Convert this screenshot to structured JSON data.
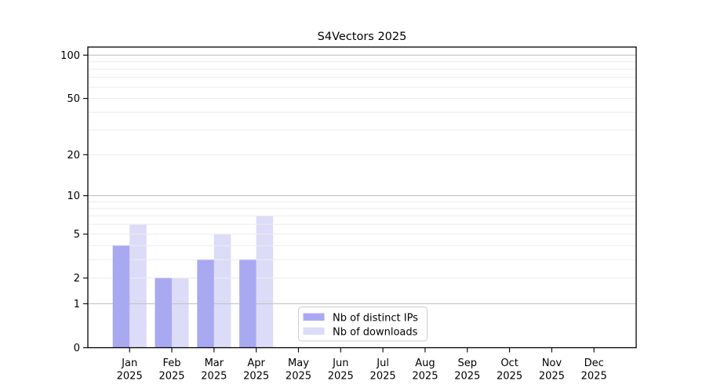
{
  "chart_data": {
    "type": "bar",
    "title": "S4Vectors 2025",
    "categories": [
      {
        "month": "Jan",
        "year": "2025"
      },
      {
        "month": "Feb",
        "year": "2025"
      },
      {
        "month": "Mar",
        "year": "2025"
      },
      {
        "month": "Apr",
        "year": "2025"
      },
      {
        "month": "May",
        "year": "2025"
      },
      {
        "month": "Jun",
        "year": "2025"
      },
      {
        "month": "Jul",
        "year": "2025"
      },
      {
        "month": "Aug",
        "year": "2025"
      },
      {
        "month": "Sep",
        "year": "2025"
      },
      {
        "month": "Oct",
        "year": "2025"
      },
      {
        "month": "Nov",
        "year": "2025"
      },
      {
        "month": "Dec",
        "year": "2025"
      }
    ],
    "series": [
      {
        "name": "Nb of distinct IPs",
        "color": "#a9a9f2",
        "values": [
          4,
          2,
          3,
          3,
          0,
          0,
          0,
          0,
          0,
          0,
          0,
          0
        ]
      },
      {
        "name": "Nb of downloads",
        "color": "#dcdcf8",
        "values": [
          6,
          2,
          5,
          7,
          0,
          0,
          0,
          0,
          0,
          0,
          0,
          0
        ]
      }
    ],
    "yscale": "log1p",
    "yticks": [
      "0",
      "1",
      "2",
      "5",
      "10",
      "20",
      "50",
      "100"
    ],
    "ylim": [
      0,
      113
    ],
    "grid": "horizontal",
    "grid_major_color": "#c3c3c3",
    "grid_minor_color": "#ececec",
    "frame_color": "#000000",
    "legend_position": "bottom-center-inside"
  }
}
